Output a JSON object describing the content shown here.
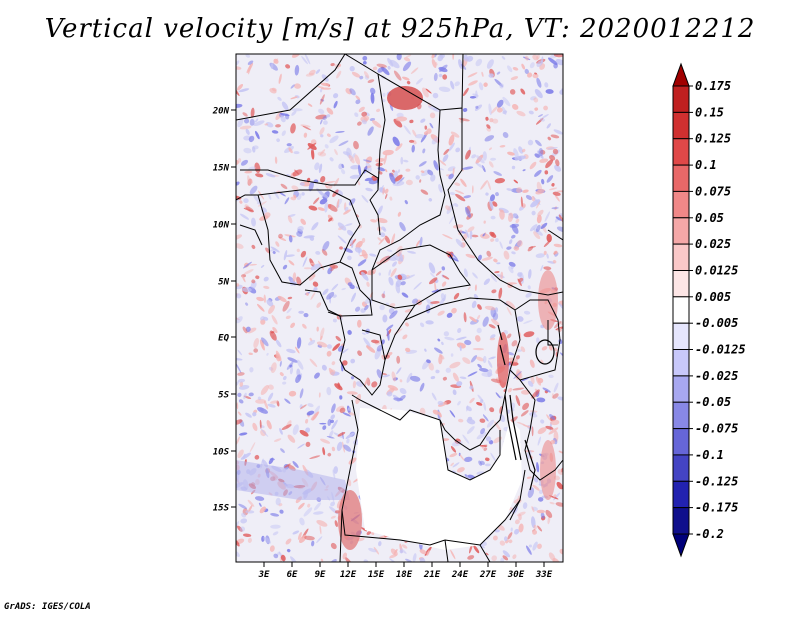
{
  "title": "Vertical velocity [m/s] at 925hPa, VT: 2020012212",
  "credit": "GrADS: IGES/COLA",
  "map": {
    "lat_labels": [
      "20N",
      "15N",
      "10N",
      "5N",
      "EQ",
      "5S",
      "10S",
      "15S"
    ],
    "lon_labels": [
      "3E",
      "6E",
      "9E",
      "12E",
      "15E",
      "18E",
      "21E",
      "24E",
      "27E",
      "30E",
      "33E"
    ]
  },
  "colorbar": {
    "labels": [
      "0.175",
      "0.15",
      "0.125",
      "0.1",
      "0.075",
      "0.05",
      "0.025",
      "0.0125",
      "0.005",
      "-0.005",
      "-0.0125",
      "-0.025",
      "-0.05",
      "-0.075",
      "-0.1",
      "-0.125",
      "-0.175",
      "-0.2"
    ],
    "colors": [
      "#a00000",
      "#c02020",
      "#d03030",
      "#e04848",
      "#e86868",
      "#f08888",
      "#f5a8a8",
      "#fac8c8",
      "#fde6e6",
      "#ffffff",
      "#e6e6fd",
      "#c8c8fa",
      "#a8a8f0",
      "#8888e6",
      "#6666d8",
      "#4444c4",
      "#2222b0",
      "#10108c",
      "#00007a"
    ]
  },
  "field_colors": {
    "up_strong": "#e05858",
    "up_weak": "#f5b4b4",
    "down_strong": "#7c7ce8",
    "down_weak": "#c4c4f4",
    "background": "#f2f0f6"
  }
}
